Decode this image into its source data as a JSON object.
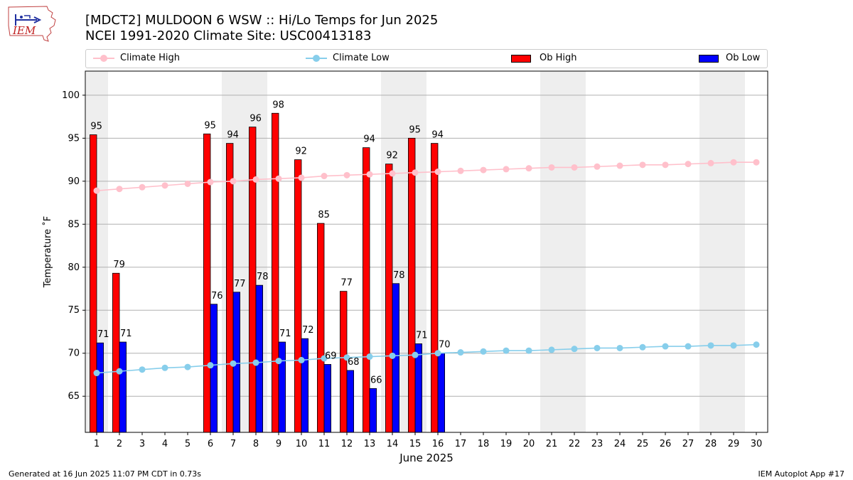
{
  "header": {
    "logo_text": "IEM",
    "title_line1": "[MDCT2] MULDOON 6 WSW :: Hi/Lo Temps for Jun 2025",
    "title_line2": "NCEI 1991-2020 Climate Site: USC00413183"
  },
  "legend": {
    "items": [
      {
        "label": "Climate High",
        "color": "#ffc0cb",
        "kind": "line"
      },
      {
        "label": "Climate Low",
        "color": "#87ceeb",
        "kind": "line"
      },
      {
        "label": "Ob High",
        "color": "#ff0000",
        "kind": "bar"
      },
      {
        "label": "Ob Low",
        "color": "#0000ff",
        "kind": "bar"
      }
    ]
  },
  "footer": {
    "left": "Generated at 16 Jun 2025 11:07 PM CDT in 0.73s",
    "right": "IEM Autoplot App #17"
  },
  "chart_data": {
    "type": "bar",
    "xlabel": "June 2025",
    "ylabel": "Temperature ˚F",
    "ylim": [
      60.8,
      102.8
    ],
    "yticks": [
      65,
      70,
      75,
      80,
      85,
      90,
      95,
      100
    ],
    "grid": "horizontal",
    "legend_position": "top",
    "categories": [
      "1",
      "2",
      "3",
      "4",
      "5",
      "6",
      "7",
      "8",
      "9",
      "10",
      "11",
      "12",
      "13",
      "14",
      "15",
      "16",
      "17",
      "18",
      "19",
      "20",
      "21",
      "22",
      "23",
      "24",
      "25",
      "26",
      "27",
      "28",
      "29",
      "30"
    ],
    "weekend_days": [
      1,
      7,
      8,
      14,
      15,
      21,
      22,
      28,
      29
    ],
    "series": [
      {
        "name": "Ob High",
        "color": "#ff0000",
        "values": [
          95.4,
          79.3,
          null,
          null,
          null,
          95.5,
          94.4,
          96.3,
          97.9,
          92.5,
          85.1,
          77.2,
          93.9,
          92.0,
          95.0,
          94.4,
          null,
          null,
          null,
          null,
          null,
          null,
          null,
          null,
          null,
          null,
          null,
          null,
          null,
          null
        ],
        "labels": [
          "95",
          "79",
          null,
          null,
          null,
          "95",
          "94",
          "96",
          "98",
          "92",
          "85",
          "77",
          "94",
          "92",
          "95",
          "94",
          null,
          null,
          null,
          null,
          null,
          null,
          null,
          null,
          null,
          null,
          null,
          null,
          null,
          null
        ]
      },
      {
        "name": "Ob Low",
        "color": "#0000ff",
        "values": [
          71.2,
          71.3,
          null,
          null,
          null,
          75.7,
          77.1,
          77.9,
          71.3,
          71.7,
          68.7,
          68.0,
          65.9,
          78.1,
          71.1,
          70.0,
          null,
          null,
          null,
          null,
          null,
          null,
          null,
          null,
          null,
          null,
          null,
          null,
          null,
          null
        ],
        "labels": [
          "71",
          "71",
          null,
          null,
          null,
          "76",
          "77",
          "78",
          "71",
          "72",
          "69",
          "68",
          "66",
          "78",
          "71",
          "70",
          null,
          null,
          null,
          null,
          null,
          null,
          null,
          null,
          null,
          null,
          null,
          null,
          null,
          null
        ]
      },
      {
        "name": "Climate High",
        "color": "#ffc0cb",
        "values": [
          88.9,
          89.1,
          89.3,
          89.5,
          89.7,
          89.9,
          90.0,
          90.2,
          90.3,
          90.4,
          90.6,
          90.7,
          90.8,
          90.9,
          91.0,
          91.1,
          91.2,
          91.3,
          91.4,
          91.5,
          91.6,
          91.6,
          91.7,
          91.8,
          91.9,
          91.9,
          92.0,
          92.1,
          92.2,
          92.2
        ]
      },
      {
        "name": "Climate Low",
        "color": "#87ceeb",
        "values": [
          67.7,
          67.9,
          68.1,
          68.3,
          68.4,
          68.6,
          68.8,
          68.9,
          69.1,
          69.2,
          69.4,
          69.5,
          69.6,
          69.7,
          69.8,
          70.0,
          70.1,
          70.2,
          70.3,
          70.3,
          70.4,
          70.5,
          70.6,
          70.6,
          70.7,
          70.8,
          70.8,
          70.9,
          70.9,
          71.0
        ]
      }
    ]
  }
}
